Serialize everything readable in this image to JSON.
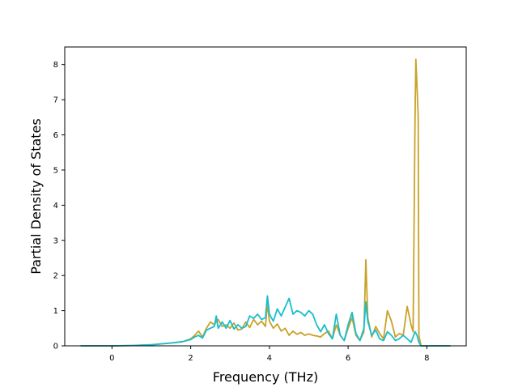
{
  "chart_data": {
    "type": "line",
    "title": "",
    "xlabel": "Frequency (THz)",
    "ylabel": "Partial Density of States",
    "xlim": [
      -1.2,
      9.0
    ],
    "ylim": [
      0,
      8.5
    ],
    "xticks": [
      0,
      2,
      4,
      6,
      8
    ],
    "yticks": [
      0,
      1,
      2,
      3,
      4,
      5,
      6,
      7,
      8
    ],
    "grid": false,
    "legend": "none",
    "series": [
      {
        "color": "#c9a227",
        "points": [
          [
            -0.8,
            0
          ],
          [
            0,
            0
          ],
          [
            0.5,
            0.01
          ],
          [
            1.0,
            0.03
          ],
          [
            1.5,
            0.08
          ],
          [
            1.8,
            0.12
          ],
          [
            2.0,
            0.2
          ],
          [
            2.1,
            0.3
          ],
          [
            2.2,
            0.42
          ],
          [
            2.3,
            0.25
          ],
          [
            2.4,
            0.5
          ],
          [
            2.5,
            0.68
          ],
          [
            2.6,
            0.6
          ],
          [
            2.7,
            0.75
          ],
          [
            2.8,
            0.55
          ],
          [
            2.9,
            0.6
          ],
          [
            3.0,
            0.5
          ],
          [
            3.1,
            0.65
          ],
          [
            3.2,
            0.45
          ],
          [
            3.3,
            0.48
          ],
          [
            3.4,
            0.68
          ],
          [
            3.5,
            0.52
          ],
          [
            3.6,
            0.75
          ],
          [
            3.7,
            0.6
          ],
          [
            3.8,
            0.7
          ],
          [
            3.9,
            0.55
          ],
          [
            3.95,
            1.2
          ],
          [
            4.0,
            0.7
          ],
          [
            4.1,
            0.5
          ],
          [
            4.2,
            0.62
          ],
          [
            4.3,
            0.42
          ],
          [
            4.4,
            0.5
          ],
          [
            4.5,
            0.3
          ],
          [
            4.6,
            0.42
          ],
          [
            4.7,
            0.33
          ],
          [
            4.8,
            0.38
          ],
          [
            4.9,
            0.3
          ],
          [
            5.0,
            0.34
          ],
          [
            5.1,
            0.3
          ],
          [
            5.2,
            0.28
          ],
          [
            5.3,
            0.25
          ],
          [
            5.4,
            0.35
          ],
          [
            5.5,
            0.42
          ],
          [
            5.6,
            0.2
          ],
          [
            5.7,
            0.6
          ],
          [
            5.8,
            0.3
          ],
          [
            5.9,
            0.15
          ],
          [
            6.0,
            0.5
          ],
          [
            6.1,
            0.8
          ],
          [
            6.2,
            0.3
          ],
          [
            6.3,
            0.15
          ],
          [
            6.4,
            0.4
          ],
          [
            6.45,
            2.45
          ],
          [
            6.5,
            0.8
          ],
          [
            6.6,
            0.25
          ],
          [
            6.7,
            0.55
          ],
          [
            6.8,
            0.35
          ],
          [
            6.9,
            0.2
          ],
          [
            7.0,
            1.0
          ],
          [
            7.1,
            0.7
          ],
          [
            7.2,
            0.25
          ],
          [
            7.3,
            0.35
          ],
          [
            7.4,
            0.3
          ],
          [
            7.5,
            1.12
          ],
          [
            7.6,
            0.6
          ],
          [
            7.65,
            0.4
          ],
          [
            7.7,
            6.5
          ],
          [
            7.72,
            8.15
          ],
          [
            7.75,
            7.4
          ],
          [
            7.78,
            6.5
          ],
          [
            7.8,
            0.3
          ],
          [
            7.85,
            0
          ],
          [
            8.6,
            0
          ]
        ]
      },
      {
        "color": "#17becf",
        "points": [
          [
            -0.8,
            0
          ],
          [
            0,
            0
          ],
          [
            0.5,
            0.01
          ],
          [
            1.0,
            0.03
          ],
          [
            1.5,
            0.08
          ],
          [
            1.8,
            0.12
          ],
          [
            2.0,
            0.18
          ],
          [
            2.1,
            0.25
          ],
          [
            2.2,
            0.3
          ],
          [
            2.3,
            0.22
          ],
          [
            2.4,
            0.45
          ],
          [
            2.5,
            0.5
          ],
          [
            2.6,
            0.55
          ],
          [
            2.65,
            0.85
          ],
          [
            2.7,
            0.5
          ],
          [
            2.8,
            0.68
          ],
          [
            2.9,
            0.5
          ],
          [
            3.0,
            0.72
          ],
          [
            3.1,
            0.48
          ],
          [
            3.2,
            0.6
          ],
          [
            3.3,
            0.5
          ],
          [
            3.4,
            0.55
          ],
          [
            3.5,
            0.85
          ],
          [
            3.6,
            0.78
          ],
          [
            3.7,
            0.9
          ],
          [
            3.8,
            0.75
          ],
          [
            3.9,
            0.8
          ],
          [
            3.95,
            1.42
          ],
          [
            4.0,
            0.9
          ],
          [
            4.1,
            0.7
          ],
          [
            4.2,
            1.05
          ],
          [
            4.3,
            0.85
          ],
          [
            4.4,
            1.1
          ],
          [
            4.5,
            1.35
          ],
          [
            4.6,
            0.9
          ],
          [
            4.7,
            1.0
          ],
          [
            4.8,
            0.95
          ],
          [
            4.9,
            0.85
          ],
          [
            5.0,
            1.0
          ],
          [
            5.1,
            0.9
          ],
          [
            5.2,
            0.6
          ],
          [
            5.3,
            0.4
          ],
          [
            5.4,
            0.6
          ],
          [
            5.5,
            0.35
          ],
          [
            5.6,
            0.2
          ],
          [
            5.7,
            0.9
          ],
          [
            5.8,
            0.3
          ],
          [
            5.9,
            0.15
          ],
          [
            6.0,
            0.6
          ],
          [
            6.1,
            0.95
          ],
          [
            6.2,
            0.35
          ],
          [
            6.3,
            0.15
          ],
          [
            6.4,
            0.5
          ],
          [
            6.45,
            1.25
          ],
          [
            6.5,
            0.7
          ],
          [
            6.6,
            0.3
          ],
          [
            6.7,
            0.45
          ],
          [
            6.8,
            0.2
          ],
          [
            6.9,
            0.15
          ],
          [
            7.0,
            0.4
          ],
          [
            7.1,
            0.3
          ],
          [
            7.2,
            0.15
          ],
          [
            7.3,
            0.2
          ],
          [
            7.4,
            0.3
          ],
          [
            7.5,
            0.2
          ],
          [
            7.6,
            0.1
          ],
          [
            7.7,
            0.4
          ],
          [
            7.75,
            0.3
          ],
          [
            7.8,
            0.1
          ],
          [
            7.85,
            0
          ],
          [
            8.6,
            0
          ]
        ]
      }
    ]
  }
}
